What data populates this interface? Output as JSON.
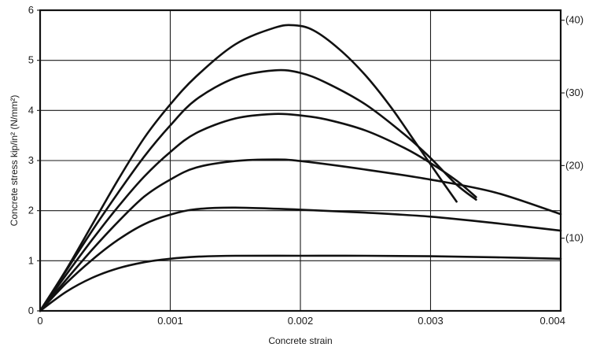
{
  "chart_data": {
    "type": "line",
    "title": "",
    "xlabel": "Concrete strain",
    "ylabel": "Concrete stress kip/in² (N/mm²)",
    "xlim": [
      0,
      0.004
    ],
    "ylim": [
      0,
      6
    ],
    "grid": true,
    "x_ticks": [
      "0",
      "0.001",
      "0.002",
      "0.003",
      "0.004"
    ],
    "y_ticks": [
      "0",
      "1",
      "2",
      "3",
      "4",
      "5",
      "6"
    ],
    "right_ticks": [
      {
        "label": "(10)",
        "value": 1.45
      },
      {
        "label": "(20)",
        "value": 2.9
      },
      {
        "label": "(30)",
        "value": 4.35
      },
      {
        "label": "(40)",
        "value": 5.8
      }
    ],
    "series": [
      {
        "values": [
          [
            0,
            0
          ],
          [
            0.0002,
            0.38
          ],
          [
            0.0004,
            0.66
          ],
          [
            0.0006,
            0.85
          ],
          [
            0.0008,
            0.97
          ],
          [
            0.001,
            1.04
          ],
          [
            0.0012,
            1.08
          ],
          [
            0.0015,
            1.1
          ],
          [
            0.002,
            1.1
          ],
          [
            0.0025,
            1.1
          ],
          [
            0.003,
            1.09
          ],
          [
            0.0035,
            1.07
          ],
          [
            0.004,
            1.04
          ]
        ]
      },
      {
        "values": [
          [
            0,
            0
          ],
          [
            0.0002,
            0.55
          ],
          [
            0.0004,
            1.02
          ],
          [
            0.0006,
            1.42
          ],
          [
            0.0008,
            1.73
          ],
          [
            0.001,
            1.92
          ],
          [
            0.0012,
            2.03
          ],
          [
            0.0015,
            2.06
          ],
          [
            0.002,
            2.02
          ],
          [
            0.0025,
            1.96
          ],
          [
            0.003,
            1.88
          ],
          [
            0.0035,
            1.75
          ],
          [
            0.004,
            1.6
          ]
        ]
      },
      {
        "values": [
          [
            0,
            0
          ],
          [
            0.0002,
            0.62
          ],
          [
            0.0004,
            1.22
          ],
          [
            0.0006,
            1.78
          ],
          [
            0.0008,
            2.28
          ],
          [
            0.001,
            2.62
          ],
          [
            0.0012,
            2.86
          ],
          [
            0.0015,
            2.99
          ],
          [
            0.0018,
            3.02
          ],
          [
            0.002,
            2.99
          ],
          [
            0.0025,
            2.82
          ],
          [
            0.003,
            2.62
          ],
          [
            0.0035,
            2.36
          ],
          [
            0.004,
            1.93
          ]
        ]
      },
      {
        "values": [
          [
            0,
            0
          ],
          [
            0.0002,
            0.72
          ],
          [
            0.0004,
            1.42
          ],
          [
            0.0006,
            2.08
          ],
          [
            0.0008,
            2.68
          ],
          [
            0.001,
            3.17
          ],
          [
            0.0012,
            3.55
          ],
          [
            0.0015,
            3.84
          ],
          [
            0.0018,
            3.93
          ],
          [
            0.002,
            3.9
          ],
          [
            0.0022,
            3.82
          ],
          [
            0.0025,
            3.6
          ],
          [
            0.0028,
            3.25
          ],
          [
            0.003,
            2.95
          ],
          [
            0.0032,
            2.6
          ],
          [
            0.00335,
            2.27
          ]
        ]
      },
      {
        "values": [
          [
            0,
            0
          ],
          [
            0.0002,
            0.8
          ],
          [
            0.0004,
            1.6
          ],
          [
            0.0006,
            2.36
          ],
          [
            0.0008,
            3.08
          ],
          [
            0.001,
            3.7
          ],
          [
            0.0012,
            4.22
          ],
          [
            0.0015,
            4.65
          ],
          [
            0.0018,
            4.8
          ],
          [
            0.002,
            4.75
          ],
          [
            0.0022,
            4.55
          ],
          [
            0.0025,
            4.12
          ],
          [
            0.0028,
            3.52
          ],
          [
            0.003,
            3.05
          ],
          [
            0.0032,
            2.52
          ],
          [
            0.00335,
            2.22
          ]
        ]
      },
      {
        "values": [
          [
            0,
            0
          ],
          [
            0.0002,
            0.82
          ],
          [
            0.0004,
            1.72
          ],
          [
            0.0006,
            2.62
          ],
          [
            0.0008,
            3.45
          ],
          [
            0.001,
            4.12
          ],
          [
            0.0012,
            4.68
          ],
          [
            0.0015,
            5.32
          ],
          [
            0.0018,
            5.65
          ],
          [
            0.00195,
            5.7
          ],
          [
            0.0021,
            5.6
          ],
          [
            0.0023,
            5.22
          ],
          [
            0.0025,
            4.7
          ],
          [
            0.0027,
            4.05
          ],
          [
            0.0029,
            3.3
          ],
          [
            0.0031,
            2.55
          ],
          [
            0.0032,
            2.18
          ]
        ]
      }
    ]
  }
}
